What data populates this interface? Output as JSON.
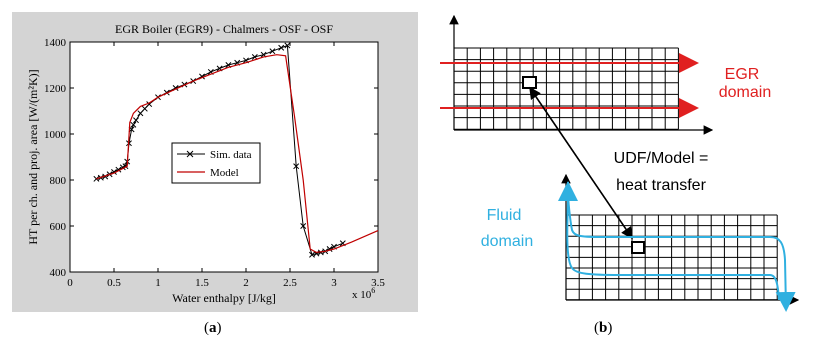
{
  "panel_a": {
    "caption_letter": "a",
    "caption_open": "(",
    "caption_close": ")"
  },
  "panel_b": {
    "caption_letter": "b",
    "caption_open": "(",
    "caption_close": ")",
    "labels": {
      "egr_line1": "EGR",
      "egr_line2": "domain",
      "udf_line1": "UDF/Model =",
      "udf_line2": "heat transfer",
      "fluid_line1": "Fluid",
      "fluid_line2": "domain"
    },
    "colors": {
      "egr": "#e02020",
      "fluid": "#30b0e0",
      "grid": "#000000"
    }
  },
  "chart_data": {
    "type": "line",
    "title": "EGR Boiler (EGR9) - Chalmers - OSF - OSF",
    "xlabel": "Water enthalpy [J/kg]",
    "ylabel": "HT per ch. and proj. area [W/(m²K)]",
    "x_multiplier_label": "x 10",
    "x_multiplier_exp": "6",
    "xlim": [
      0,
      3.5
    ],
    "ylim": [
      400,
      1400
    ],
    "xticks": [
      0,
      0.5,
      1,
      1.5,
      2,
      2.5,
      3,
      3.5
    ],
    "xtick_labels": [
      "0",
      "0.5",
      "1",
      "1.5",
      "2",
      "2.5",
      "3",
      "3.5"
    ],
    "yticks": [
      400,
      600,
      800,
      1000,
      1200,
      1400
    ],
    "ytick_labels": [
      "400",
      "600",
      "800",
      "1000",
      "1200",
      "1400"
    ],
    "grid": false,
    "legend_position": "center",
    "background": "#d4d4d4",
    "series": [
      {
        "name": "Sim. data",
        "color": "#000000",
        "marker": "x",
        "x": [
          0.3,
          0.35,
          0.4,
          0.45,
          0.5,
          0.55,
          0.6,
          0.63,
          0.65,
          0.67,
          0.7,
          0.72,
          0.75,
          0.8,
          0.85,
          0.9,
          1.0,
          1.1,
          1.2,
          1.3,
          1.4,
          1.5,
          1.6,
          1.7,
          1.8,
          1.9,
          2.0,
          2.1,
          2.2,
          2.3,
          2.4,
          2.47,
          2.57,
          2.65,
          2.75,
          2.8,
          2.85,
          2.9,
          2.95,
          3.0,
          3.1
        ],
        "y": [
          805,
          810,
          815,
          825,
          835,
          845,
          855,
          860,
          880,
          960,
          1020,
          1040,
          1060,
          1090,
          1110,
          1130,
          1160,
          1180,
          1200,
          1215,
          1230,
          1250,
          1270,
          1285,
          1300,
          1310,
          1320,
          1335,
          1345,
          1360,
          1375,
          1385,
          860,
          600,
          475,
          480,
          485,
          490,
          500,
          510,
          525
        ]
      },
      {
        "name": "Model",
        "color": "#c00000",
        "marker": "none",
        "x": [
          0.3,
          0.5,
          0.65,
          0.68,
          0.72,
          0.8,
          0.9,
          1.0,
          1.2,
          1.4,
          1.6,
          1.8,
          2.0,
          2.2,
          2.35,
          2.45,
          2.55,
          2.65,
          2.73,
          2.8,
          2.9,
          3.0,
          3.2,
          3.5
        ],
        "y": [
          805,
          830,
          860,
          1050,
          1090,
          1120,
          1135,
          1160,
          1195,
          1230,
          1260,
          1290,
          1310,
          1335,
          1345,
          1340,
          1080,
          800,
          500,
          485,
          490,
          500,
          530,
          580
        ]
      }
    ]
  }
}
